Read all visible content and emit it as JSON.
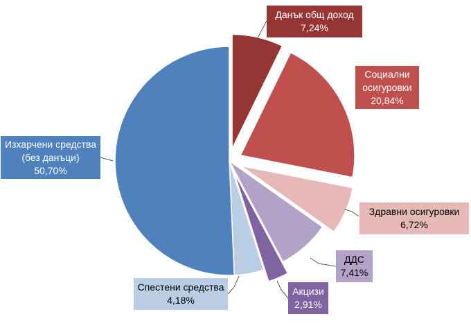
{
  "chart_data": {
    "type": "pie",
    "title": "",
    "slices": [
      {
        "name": "Данък общ доход",
        "value": 7.24,
        "value_label": "7,24%",
        "color": "#963634",
        "text_color": "#ffffff",
        "exploded": true
      },
      {
        "name": "Социални осигуровки",
        "value": 20.84,
        "value_label": "20,84%",
        "color": "#c0504d",
        "text_color": "#ffffff",
        "exploded": true
      },
      {
        "name": "Здравни осигуровки",
        "value": 6.72,
        "value_label": "6,72%",
        "color": "#e6b9b8",
        "text_color": "#000000",
        "exploded": true
      },
      {
        "name": "ДДС",
        "value": 7.41,
        "value_label": "7,41%",
        "color": "#b3a2c7",
        "text_color": "#000000",
        "exploded": false
      },
      {
        "name": "Акцизи",
        "value": 2.91,
        "value_label": "2,91%",
        "color": "#8064a2",
        "text_color": "#ffffff",
        "exploded": true
      },
      {
        "name": "Спестени средства",
        "value": 4.18,
        "value_label": "4,18%",
        "color": "#b9cde5",
        "text_color": "#000000",
        "exploded": false
      },
      {
        "name": "Изхарчени средства (без данъци)",
        "value": 50.7,
        "value_label": "50,70%",
        "color": "#4f81bd",
        "text_color": "#ffffff",
        "exploded": false
      }
    ]
  },
  "labels": [
    {
      "lines": [
        "Данък общ доход",
        "7,24%"
      ]
    },
    {
      "lines": [
        "Социални",
        "осигуровки",
        "20,84%"
      ]
    },
    {
      "lines": [
        "Здравни осигуровки",
        "6,72%"
      ]
    },
    {
      "lines": [
        "ДДС",
        "7,41%"
      ]
    },
    {
      "lines": [
        "Акцизи",
        "2,91%"
      ]
    },
    {
      "lines": [
        "Спестени средства",
        "4,18%"
      ]
    },
    {
      "lines": [
        "Изхарчени средства",
        "(без данъци)",
        "50,70%"
      ]
    }
  ]
}
